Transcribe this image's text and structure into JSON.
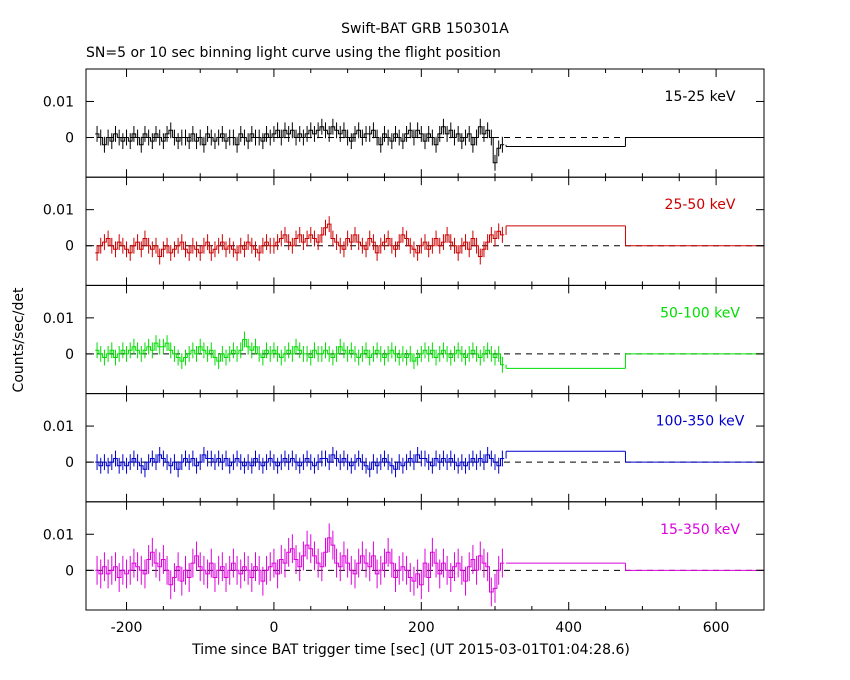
{
  "header": {
    "title": "Swift-BAT GRB 150301A",
    "subtitle": "SN=5 or 10 sec binning light curve using the flight position"
  },
  "axes": {
    "xlabel": "Time since BAT trigger time [sec] (UT 2015-03-01T01:04:28.6)",
    "ylabel": "Counts/sec/det",
    "xlim": [
      -255,
      665
    ],
    "ylim": [
      -0.011,
      0.019
    ],
    "xticks": [
      -200,
      0,
      200,
      400,
      600
    ],
    "yticks": [
      0,
      0.01
    ],
    "ytick_labels": [
      "0",
      "0.01"
    ]
  },
  "chart_data": [
    {
      "type": "line",
      "panel": "15-25 keV",
      "color": "#000000",
      "bins_x": [
        -240,
        -235,
        -230,
        -225,
        -220,
        -215,
        -210,
        -205,
        -200,
        -195,
        -190,
        -185,
        -180,
        -175,
        -170,
        -165,
        -160,
        -155,
        -150,
        -145,
        -140,
        -135,
        -130,
        -125,
        -120,
        -115,
        -110,
        -105,
        -100,
        -95,
        -90,
        -85,
        -80,
        -75,
        -70,
        -65,
        -60,
        -55,
        -50,
        -45,
        -40,
        -35,
        -30,
        -25,
        -20,
        -15,
        -10,
        -5,
        0,
        5,
        10,
        15,
        20,
        25,
        30,
        35,
        40,
        45,
        50,
        55,
        60,
        65,
        70,
        75,
        80,
        85,
        90,
        95,
        100,
        105,
        110,
        115,
        120,
        125,
        130,
        135,
        140,
        145,
        150,
        155,
        160,
        165,
        170,
        175,
        180,
        185,
        190,
        195,
        200,
        205,
        210,
        215,
        220,
        225,
        230,
        235,
        240,
        245,
        250,
        255,
        260,
        265,
        270,
        275,
        280,
        285,
        290,
        295,
        300,
        305,
        310
      ],
      "values": [
        0.001,
        0.0,
        -0.002,
        0.0,
        -0.001,
        0.001,
        0.0,
        -0.001,
        0.0,
        -0.001,
        0.001,
        0.0,
        -0.002,
        0.001,
        0.0,
        -0.001,
        0.001,
        0.0,
        -0.001,
        0.001,
        0.002,
        0.0,
        -0.001,
        0.0,
        0.0,
        -0.001,
        0.001,
        -0.001,
        0.0,
        -0.002,
        0.001,
        0.0,
        -0.001,
        0.0,
        0.001,
        -0.001,
        0.0,
        0.0,
        -0.002,
        0.001,
        0.0,
        -0.001,
        0.001,
        0.0,
        0.0,
        -0.001,
        0.001,
        0.0,
        0.001,
        0.002,
        0.0,
        0.002,
        0.001,
        0.002,
        0.0,
        0.001,
        0.0,
        0.001,
        0.002,
        0.001,
        0.002,
        0.003,
        0.002,
        0.001,
        0.003,
        0.002,
        0.001,
        0.002,
        0.0,
        -0.001,
        0.001,
        0.002,
        0.0,
        0.001,
        0.001,
        0.002,
        0.0,
        -0.002,
        0.001,
        0.0,
        -0.001,
        0.001,
        0.0,
        -0.001,
        0.001,
        0.002,
        0.0,
        0.002,
        0.001,
        -0.001,
        0.001,
        0.0,
        -0.002,
        0.001,
        0.003,
        0.001,
        0.002,
        0.0,
        0.001,
        -0.001,
        0.0,
        0.001,
        -0.002,
        0.0,
        0.003,
        0.001,
        0.002,
        0.0,
        -0.007,
        -0.003,
        -0.002
      ],
      "long_bins": [
        {
          "x0": 315,
          "x1": 477,
          "value": -0.0025
        },
        {
          "x0": 477,
          "x1": 665,
          "value": 0.0
        }
      ]
    },
    {
      "type": "line",
      "panel": "25-50 keV",
      "color": "#cc0000",
      "bins_x": [
        -240,
        -235,
        -230,
        -225,
        -220,
        -215,
        -210,
        -205,
        -200,
        -195,
        -190,
        -185,
        -180,
        -175,
        -170,
        -165,
        -160,
        -155,
        -150,
        -145,
        -140,
        -135,
        -130,
        -125,
        -120,
        -115,
        -110,
        -105,
        -100,
        -95,
        -90,
        -85,
        -80,
        -75,
        -70,
        -65,
        -60,
        -55,
        -50,
        -45,
        -40,
        -35,
        -30,
        -25,
        -20,
        -15,
        -10,
        -5,
        0,
        5,
        10,
        15,
        20,
        25,
        30,
        35,
        40,
        45,
        50,
        55,
        60,
        65,
        70,
        75,
        80,
        85,
        90,
        95,
        100,
        105,
        110,
        115,
        120,
        125,
        130,
        135,
        140,
        145,
        150,
        155,
        160,
        165,
        170,
        175,
        180,
        185,
        190,
        195,
        200,
        205,
        210,
        215,
        220,
        225,
        230,
        235,
        240,
        245,
        250,
        255,
        260,
        265,
        270,
        275,
        280,
        285,
        290,
        295,
        300,
        305,
        310
      ],
      "values": [
        -0.002,
        0.0,
        0.001,
        0.002,
        0.0,
        -0.001,
        0.001,
        0.0,
        -0.001,
        -0.002,
        0.0,
        0.001,
        -0.001,
        0.002,
        0.0,
        -0.001,
        0.0,
        -0.003,
        -0.001,
        0.0,
        -0.002,
        -0.001,
        0.0,
        0.001,
        -0.001,
        -0.002,
        0.0,
        -0.001,
        -0.002,
        0.0,
        0.001,
        -0.002,
        -0.001,
        0.0,
        0.001,
        -0.001,
        0.0,
        -0.001,
        -0.002,
        0.0,
        -0.001,
        0.001,
        0.0,
        -0.001,
        -0.002,
        0.0,
        0.001,
        0.0,
        0.0,
        0.001,
        0.002,
        0.003,
        0.001,
        0.0,
        0.002,
        0.003,
        0.001,
        0.002,
        0.003,
        0.002,
        0.001,
        0.003,
        0.005,
        0.006,
        0.002,
        0.001,
        0.0,
        -0.001,
        0.002,
        0.001,
        0.003,
        0.001,
        0.0,
        -0.001,
        0.002,
        0.001,
        -0.002,
        0.0,
        0.001,
        0.002,
        0.0,
        -0.001,
        0.001,
        0.003,
        0.002,
        0.0,
        -0.001,
        -0.002,
        0.0,
        0.001,
        -0.001,
        0.0,
        0.002,
        0.0,
        0.001,
        0.003,
        0.001,
        0.0,
        -0.002,
        0.0,
        0.001,
        -0.001,
        0.002,
        0.0,
        -0.003,
        -0.001,
        0.001,
        0.003,
        0.002,
        0.004,
        0.003
      ],
      "long_bins": [
        {
          "x0": 315,
          "x1": 477,
          "value": 0.0055
        },
        {
          "x0": 477,
          "x1": 665,
          "value": 0.0
        }
      ]
    },
    {
      "type": "line",
      "panel": "50-100 keV",
      "color": "#00dd00",
      "bins_x": [
        -240,
        -235,
        -230,
        -225,
        -220,
        -215,
        -210,
        -205,
        -200,
        -195,
        -190,
        -185,
        -180,
        -175,
        -170,
        -165,
        -160,
        -155,
        -150,
        -145,
        -140,
        -135,
        -130,
        -125,
        -120,
        -115,
        -110,
        -105,
        -100,
        -95,
        -90,
        -85,
        -80,
        -75,
        -70,
        -65,
        -60,
        -55,
        -50,
        -45,
        -40,
        -35,
        -30,
        -25,
        -20,
        -15,
        -10,
        -5,
        0,
        5,
        10,
        15,
        20,
        25,
        30,
        35,
        40,
        45,
        50,
        55,
        60,
        65,
        70,
        75,
        80,
        85,
        90,
        95,
        100,
        105,
        110,
        115,
        120,
        125,
        130,
        135,
        140,
        145,
        150,
        155,
        160,
        165,
        170,
        175,
        180,
        185,
        190,
        195,
        200,
        205,
        210,
        215,
        220,
        225,
        230,
        235,
        240,
        245,
        250,
        255,
        260,
        265,
        270,
        275,
        280,
        285,
        290,
        295,
        300,
        305,
        310
      ],
      "values": [
        0.001,
        0.0,
        -0.001,
        0.0,
        0.001,
        -0.001,
        0.0,
        0.001,
        0.0,
        0.001,
        0.002,
        0.001,
        0.0,
        0.001,
        0.002,
        0.001,
        0.003,
        0.002,
        0.002,
        0.003,
        0.001,
        0.0,
        -0.001,
        -0.002,
        -0.001,
        0.0,
        0.001,
        0.0,
        0.002,
        0.001,
        0.0,
        0.001,
        -0.001,
        -0.002,
        0.0,
        -0.001,
        0.0,
        0.001,
        0.0,
        0.001,
        0.004,
        0.002,
        0.001,
        0.002,
        0.0,
        -0.001,
        0.001,
        0.0,
        0.001,
        0.0,
        -0.001,
        0.0,
        0.001,
        0.0,
        0.002,
        0.001,
        0.0,
        0.0,
        -0.001,
        0.001,
        0.0,
        0.0,
        0.001,
        0.0,
        -0.001,
        0.0,
        0.002,
        0.001,
        0.0,
        0.001,
        0.0,
        -0.001,
        0.0,
        0.001,
        -0.001,
        0.0,
        0.001,
        0.0,
        -0.001,
        0.0,
        0.001,
        0.0,
        -0.001,
        0.0,
        -0.001,
        0.0,
        -0.002,
        -0.001,
        0.0,
        0.001,
        0.0,
        0.001,
        -0.001,
        0.0,
        0.001,
        0.0,
        -0.001,
        0.0,
        0.001,
        0.0,
        -0.001,
        0.0,
        0.001,
        0.0,
        -0.001,
        0.0,
        0.001,
        0.0,
        -0.001,
        0.0,
        -0.003
      ],
      "long_bins": [
        {
          "x0": 315,
          "x1": 477,
          "value": -0.004
        },
        {
          "x0": 477,
          "x1": 665,
          "value": 0.0
        }
      ]
    },
    {
      "type": "line",
      "panel": "100-350 keV",
      "color": "#0000cc",
      "bins_x": [
        -240,
        -235,
        -230,
        -225,
        -220,
        -215,
        -210,
        -205,
        -200,
        -195,
        -190,
        -185,
        -180,
        -175,
        -170,
        -165,
        -160,
        -155,
        -150,
        -145,
        -140,
        -135,
        -130,
        -125,
        -120,
        -115,
        -110,
        -105,
        -100,
        -95,
        -90,
        -85,
        -80,
        -75,
        -70,
        -65,
        -60,
        -55,
        -50,
        -45,
        -40,
        -35,
        -30,
        -25,
        -20,
        -15,
        -10,
        -5,
        0,
        5,
        10,
        15,
        20,
        25,
        30,
        35,
        40,
        45,
        50,
        55,
        60,
        65,
        70,
        75,
        80,
        85,
        90,
        95,
        100,
        105,
        110,
        115,
        120,
        125,
        130,
        135,
        140,
        145,
        150,
        155,
        160,
        165,
        170,
        175,
        180,
        185,
        190,
        195,
        200,
        205,
        210,
        215,
        220,
        225,
        230,
        235,
        240,
        245,
        250,
        255,
        260,
        265,
        270,
        275,
        280,
        285,
        290,
        295,
        300,
        305,
        310
      ],
      "values": [
        0.0,
        -0.001,
        0.0,
        -0.001,
        0.0,
        0.001,
        -0.001,
        0.0,
        -0.001,
        0.0,
        0.001,
        0.0,
        -0.001,
        -0.002,
        0.0,
        0.001,
        0.0,
        0.002,
        0.001,
        0.0,
        -0.001,
        0.0,
        -0.002,
        0.0,
        0.001,
        0.0,
        0.001,
        -0.001,
        0.0,
        0.002,
        0.001,
        0.001,
        0.0,
        0.001,
        0.0,
        0.001,
        -0.001,
        0.0,
        0.001,
        0.0,
        -0.001,
        0.0,
        -0.001,
        0.001,
        0.0,
        -0.001,
        0.0,
        0.001,
        0.0,
        -0.001,
        0.0,
        0.001,
        0.0,
        0.001,
        0.0,
        -0.001,
        0.0,
        0.001,
        0.0,
        -0.001,
        0.0,
        0.001,
        0.001,
        0.0,
        0.002,
        0.001,
        0.0,
        0.001,
        0.0,
        -0.001,
        0.0,
        0.001,
        0.0,
        -0.001,
        -0.002,
        0.0,
        -0.001,
        0.0,
        0.001,
        0.0,
        -0.001,
        -0.002,
        0.0,
        -0.001,
        0.0,
        0.001,
        0.0,
        0.002,
        0.001,
        0.001,
        0.0,
        -0.001,
        0.001,
        0.0,
        0.001,
        0.0,
        0.001,
        0.0,
        -0.001,
        0.0,
        -0.001,
        0.0,
        0.001,
        0.0,
        0.001,
        0.0,
        0.002,
        0.001,
        0.0,
        -0.001,
        0.001
      ],
      "long_bins": [
        {
          "x0": 315,
          "x1": 477,
          "value": 0.003
        },
        {
          "x0": 477,
          "x1": 665,
          "value": 0.0
        }
      ]
    },
    {
      "type": "line",
      "panel": "15-350 keV",
      "color": "#dd00dd",
      "bins_x": [
        -240,
        -235,
        -230,
        -225,
        -220,
        -215,
        -210,
        -205,
        -200,
        -195,
        -190,
        -185,
        -180,
        -175,
        -170,
        -165,
        -160,
        -155,
        -150,
        -145,
        -140,
        -135,
        -130,
        -125,
        -120,
        -115,
        -110,
        -105,
        -100,
        -95,
        -90,
        -85,
        -80,
        -75,
        -70,
        -65,
        -60,
        -55,
        -50,
        -45,
        -40,
        -35,
        -30,
        -25,
        -20,
        -15,
        -10,
        -5,
        0,
        5,
        10,
        15,
        20,
        25,
        30,
        35,
        40,
        45,
        50,
        55,
        60,
        65,
        70,
        75,
        80,
        85,
        90,
        95,
        100,
        105,
        110,
        115,
        120,
        125,
        130,
        135,
        140,
        145,
        150,
        155,
        160,
        165,
        170,
        175,
        180,
        185,
        190,
        195,
        200,
        205,
        210,
        215,
        220,
        225,
        230,
        235,
        240,
        245,
        250,
        255,
        260,
        265,
        270,
        275,
        280,
        285,
        290,
        295,
        300,
        305,
        310
      ],
      "values": [
        0.0,
        -0.001,
        0.001,
        -0.001,
        0.0,
        0.001,
        -0.002,
        0.0,
        -0.001,
        0.0,
        0.002,
        0.001,
        0.0,
        -0.001,
        0.003,
        0.005,
        0.002,
        0.001,
        0.003,
        0.0,
        -0.004,
        -0.002,
        0.001,
        -0.003,
        0.0,
        -0.002,
        0.002,
        0.004,
        0.001,
        0.0,
        -0.001,
        0.002,
        -0.002,
        0.0,
        0.001,
        -0.002,
        0.0,
        0.002,
        0.0,
        -0.001,
        0.001,
        0.0,
        -0.002,
        0.001,
        0.0,
        -0.003,
        0.0,
        0.001,
        0.002,
        -0.001,
        0.003,
        0.002,
        0.005,
        0.006,
        0.003,
        0.001,
        0.004,
        0.007,
        0.006,
        0.004,
        0.002,
        0.001,
        0.005,
        0.009,
        0.007,
        0.002,
        0.001,
        0.004,
        0.002,
        0.0,
        -0.001,
        0.002,
        0.004,
        0.002,
        0.001,
        0.004,
        -0.001,
        0.0,
        0.002,
        0.005,
        0.002,
        -0.002,
        0.0,
        0.001,
        0.0,
        -0.002,
        -0.003,
        -0.001,
        -0.004,
        0.002,
        -0.002,
        0.005,
        0.002,
        -0.001,
        0.002,
        0.0,
        -0.002,
        0.001,
        0.002,
        0.0,
        -0.003,
        0.001,
        0.003,
        0.0,
        0.004,
        0.002,
        0.001,
        -0.006,
        -0.005,
        0.0,
        0.002
      ],
      "long_bins": [
        {
          "x0": 315,
          "x1": 477,
          "value": 0.002
        },
        {
          "x0": 477,
          "x1": 665,
          "value": 0.0
        }
      ]
    }
  ]
}
